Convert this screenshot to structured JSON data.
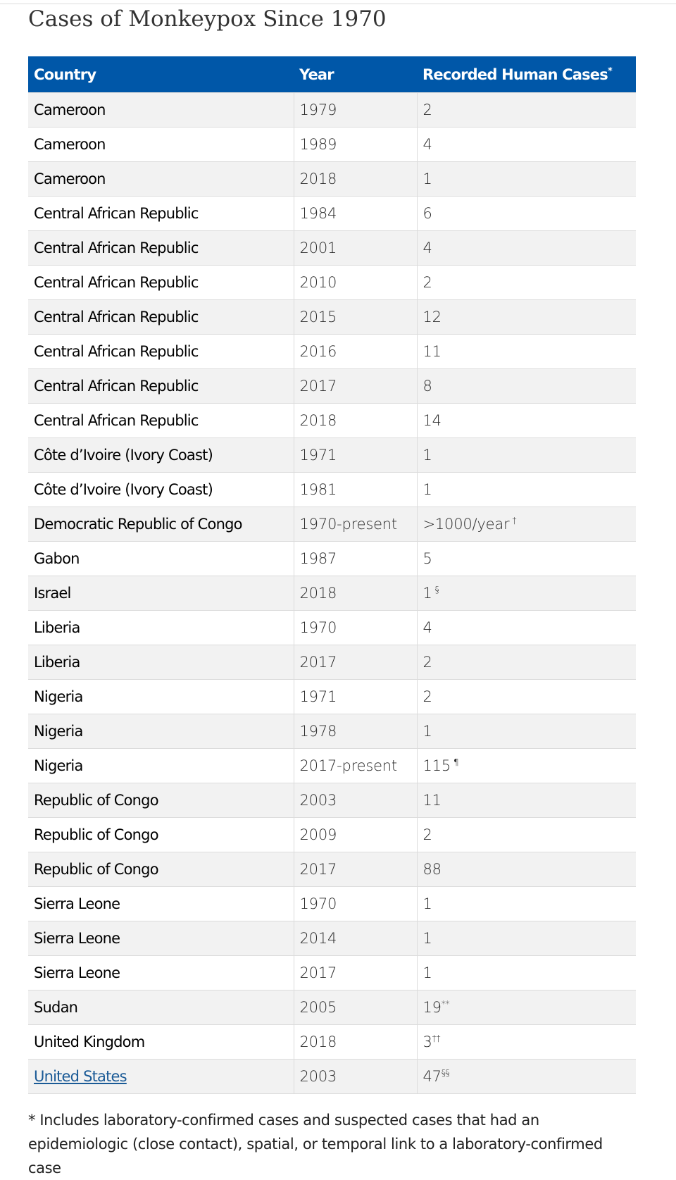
{
  "title": "Cases of Monkeypox Since 1970",
  "table": {
    "headers": {
      "country": "Country",
      "year": "Year",
      "cases": "Recorded Human Cases",
      "cases_mark": "*"
    },
    "rows": [
      {
        "country": "Cameroon",
        "year": "1979",
        "cases": "2",
        "mark": ""
      },
      {
        "country": "Cameroon",
        "year": "1989",
        "cases": "4",
        "mark": ""
      },
      {
        "country": "Cameroon",
        "year": "2018",
        "cases": "1",
        "mark": ""
      },
      {
        "country": "Central African Republic",
        "year": "1984",
        "cases": "6",
        "mark": ""
      },
      {
        "country": "Central African Republic",
        "year": "2001",
        "cases": "4",
        "mark": ""
      },
      {
        "country": "Central African Republic",
        "year": "2010",
        "cases": "2",
        "mark": ""
      },
      {
        "country": "Central African Republic",
        "year": "2015",
        "cases": "12",
        "mark": ""
      },
      {
        "country": "Central African Republic",
        "year": "2016",
        "cases": "11",
        "mark": ""
      },
      {
        "country": "Central African Republic",
        "year": "2017",
        "cases": "8",
        "mark": ""
      },
      {
        "country": "Central African Republic",
        "year": "2018",
        "cases": "14",
        "mark": ""
      },
      {
        "country": "Côte d’Ivoire (Ivory Coast)",
        "year": "1971",
        "cases": "1",
        "mark": ""
      },
      {
        "country": "Côte d’Ivoire (Ivory Coast)",
        "year": "1981",
        "cases": "1",
        "mark": ""
      },
      {
        "country": "Democratic Republic of Congo",
        "year": "1970-present",
        "cases": ">1000/year",
        "mark": "†"
      },
      {
        "country": "Gabon",
        "year": "1987",
        "cases": "5",
        "mark": ""
      },
      {
        "country": "Israel",
        "year": "2018",
        "cases": "1",
        "mark": "§"
      },
      {
        "country": "Liberia",
        "year": "1970",
        "cases": "4",
        "mark": ""
      },
      {
        "country": "Liberia",
        "year": "2017",
        "cases": "2",
        "mark": ""
      },
      {
        "country": "Nigeria",
        "year": "1971",
        "cases": "2",
        "mark": ""
      },
      {
        "country": "Nigeria",
        "year": "1978",
        "cases": "1",
        "mark": ""
      },
      {
        "country": "Nigeria",
        "year": "2017-present",
        "cases": "115",
        "mark": "¶"
      },
      {
        "country": "Republic of Congo",
        "year": "2003",
        "cases": "11",
        "mark": ""
      },
      {
        "country": "Republic of Congo",
        "year": "2009",
        "cases": "2",
        "mark": ""
      },
      {
        "country": "Republic of Congo",
        "year": "2017",
        "cases": "88",
        "mark": ""
      },
      {
        "country": "Sierra Leone",
        "year": "1970",
        "cases": "1",
        "mark": ""
      },
      {
        "country": "Sierra Leone",
        "year": "2014",
        "cases": "1",
        "mark": ""
      },
      {
        "country": "Sierra Leone",
        "year": "2017",
        "cases": "1",
        "mark": ""
      },
      {
        "country": "Sudan",
        "year": "2005",
        "cases": "19",
        "mark": "**"
      },
      {
        "country": "United Kingdom",
        "year": "2018",
        "cases": "3",
        "mark": "††"
      },
      {
        "country": "United States",
        "year": "2003",
        "cases": "47",
        "mark": "§§",
        "is_link": true
      }
    ]
  },
  "footnote": "* Includes laboratory-confirmed cases and suspected cases that had an epidemiologic (close contact), spatial, or temporal link to a laboratory-confirmed case",
  "colors": {
    "header_bg": "#0057a8",
    "header_text": "#ffffff",
    "row_alt_bg": "#f2f2f2",
    "link": "#1a5a96"
  }
}
